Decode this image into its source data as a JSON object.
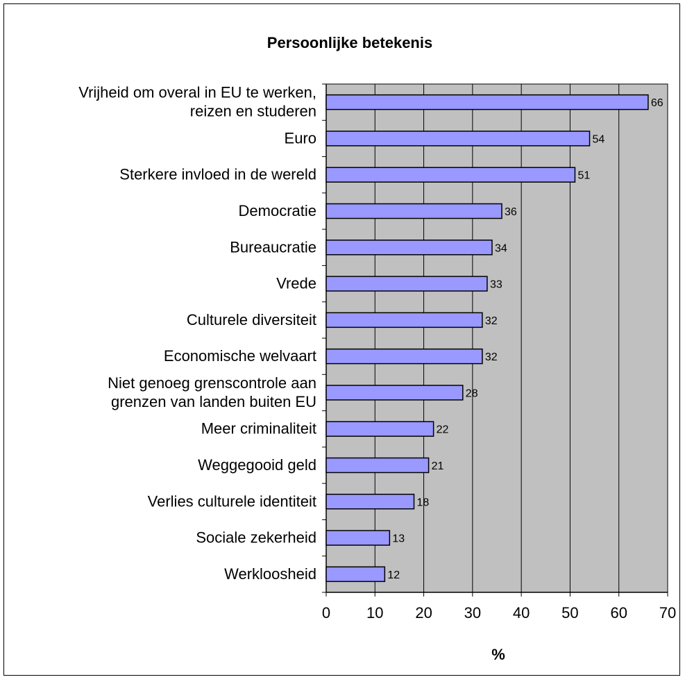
{
  "chart_data": {
    "type": "bar",
    "orientation": "horizontal",
    "title": "Persoonlijke betekenis",
    "xlabel": "%",
    "ylabel": "",
    "xlim": [
      0,
      70
    ],
    "x_ticks": [
      "0",
      "10",
      "20",
      "30",
      "40",
      "50",
      "60",
      "70"
    ],
    "grid": true,
    "legend": "none",
    "categories": [
      [
        "Vrijheid om overal in EU te werken,",
        "reizen en studeren"
      ],
      [
        "Euro"
      ],
      [
        "Sterkere invloed in de wereld"
      ],
      [
        "Democratie"
      ],
      [
        "Bureaucratie"
      ],
      [
        "Vrede"
      ],
      [
        "Culturele diversiteit"
      ],
      [
        "Economische welvaart"
      ],
      [
        "Niet genoeg grenscontrole aan",
        "grenzen van landen buiten EU"
      ],
      [
        "Meer criminaliteit"
      ],
      [
        "Weggegooid geld"
      ],
      [
        "Verlies culturele identiteit"
      ],
      [
        "Sociale zekerheid"
      ],
      [
        "Werkloosheid"
      ]
    ],
    "values": [
      66,
      54,
      51,
      36,
      34,
      33,
      32,
      32,
      28,
      22,
      21,
      18,
      13,
      12
    ],
    "colors": {
      "bar": "#9999ff",
      "plot_background": "#c0c0c0",
      "gridline": "#000000"
    }
  }
}
